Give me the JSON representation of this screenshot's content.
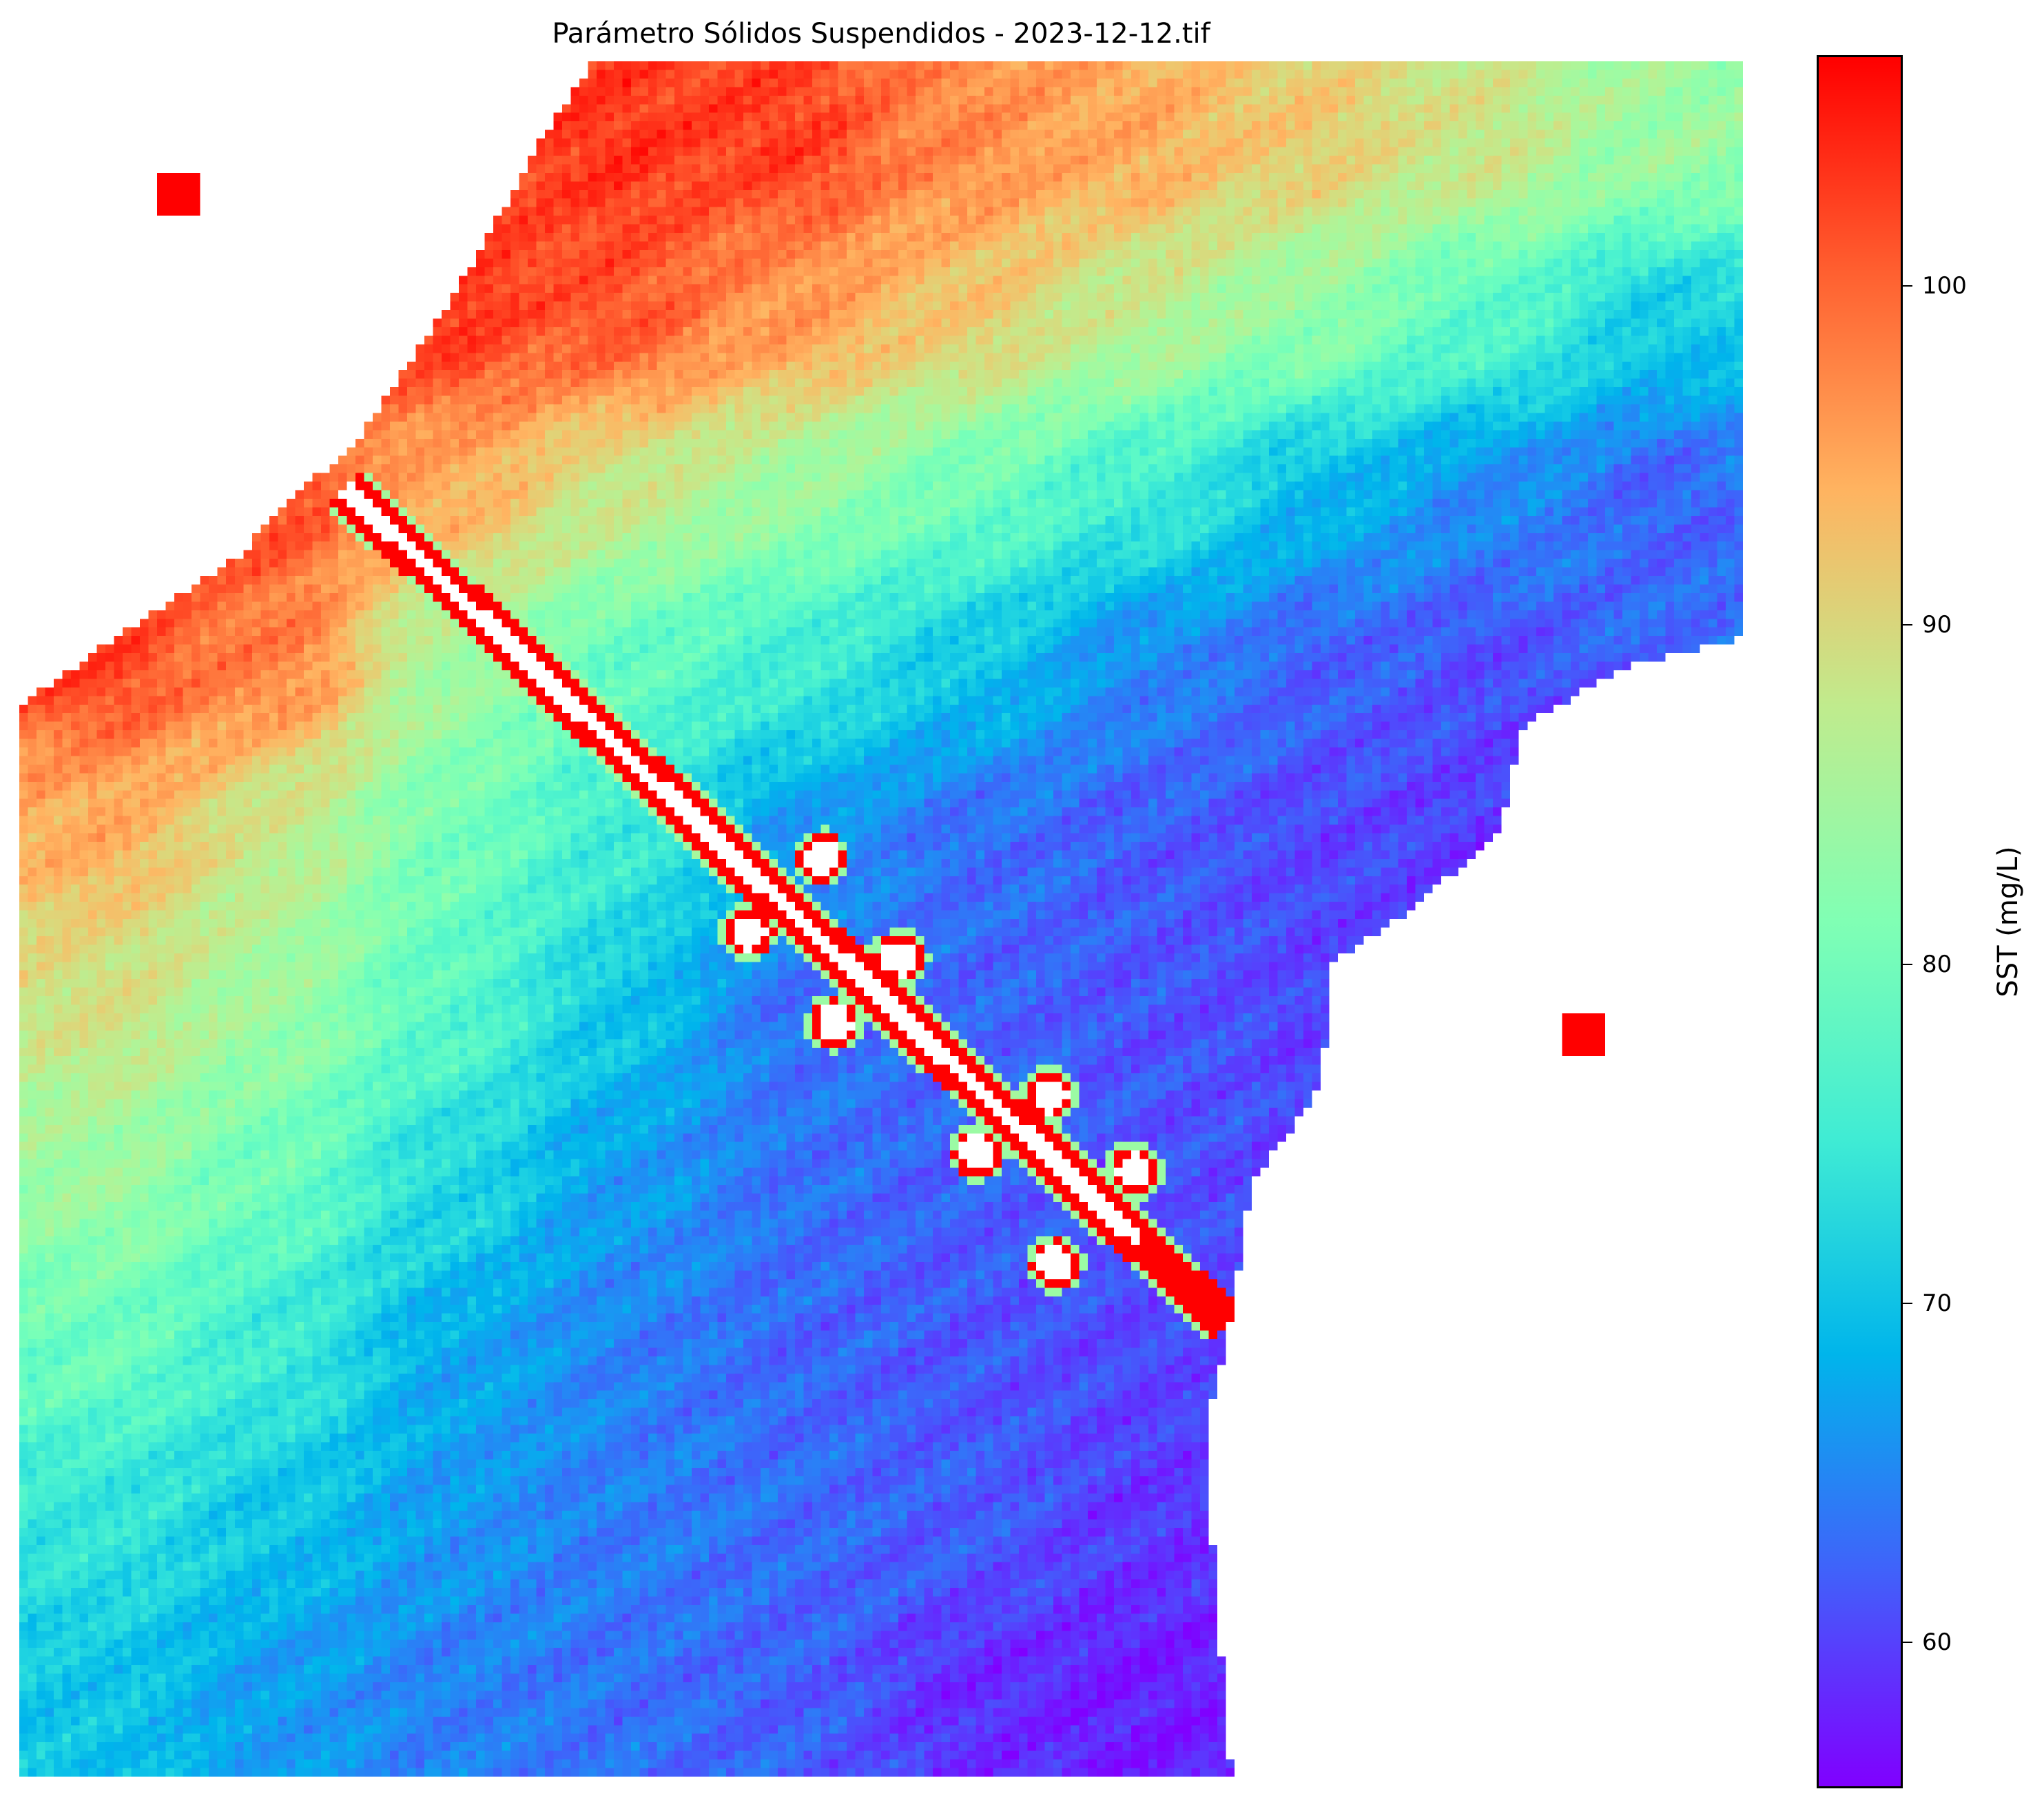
{
  "chart_data": {
    "type": "heatmap",
    "title": "Parámetro Sólidos Suspendidos - 2023-12-12.tif",
    "colormap": "rainbow",
    "colorbar": {
      "label": "SST (mg/L)",
      "range": [
        55.7,
        106.8
      ],
      "ticks": [
        60,
        70,
        80,
        90,
        100
      ],
      "tick_labels": [
        "60",
        "70",
        "80",
        "90",
        "100"
      ]
    },
    "axes_visible": false,
    "nodata_color": "#ffffff",
    "approx_grid_values": [
      [
        null,
        null,
        null,
        104,
        104,
        98,
        96,
        93,
        90,
        85
      ],
      [
        null,
        null,
        105,
        103,
        97,
        93,
        88,
        84,
        78,
        70
      ],
      [
        null,
        104,
        95,
        88,
        84,
        80,
        75,
        68,
        64,
        61
      ],
      [
        104,
        100,
        84,
        78,
        75,
        70,
        64,
        61,
        60,
        null
      ],
      [
        95,
        88,
        80,
        75,
        65,
        62,
        61,
        60,
        59,
        null
      ],
      [
        90,
        85,
        78,
        70,
        62,
        62,
        61,
        60,
        null,
        null
      ],
      [
        85,
        80,
        72,
        66,
        63,
        62,
        61,
        60,
        null,
        null
      ],
      [
        80,
        75,
        67,
        64,
        62,
        61,
        60,
        null,
        null,
        null
      ],
      [
        74,
        70,
        66,
        64,
        63,
        62,
        59,
        null,
        null,
        null
      ],
      [
        70,
        66,
        64,
        63,
        62,
        58,
        57,
        null,
        null,
        null
      ]
    ]
  }
}
